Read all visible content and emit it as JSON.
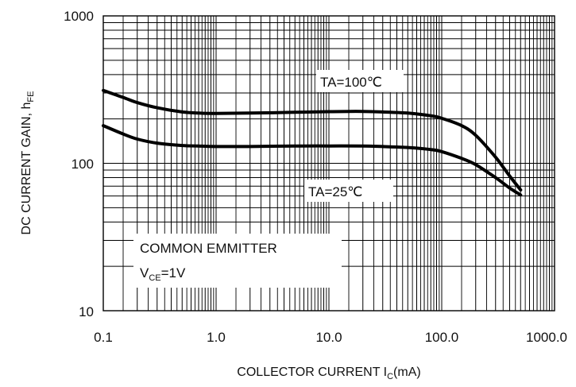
{
  "chart_data": {
    "type": "line",
    "xlabel": "COLLECTOR CURRENT I",
    "xlabel_sub": "C",
    "xlabel_unit": "(mA)",
    "ylabel": "DC CURRENT GAIN, h",
    "ylabel_sub": "FE",
    "x_scale": "log",
    "y_scale": "log",
    "xlim": [
      0.1,
      1000
    ],
    "ylim": [
      10,
      1000
    ],
    "x_ticks": [
      "0.1",
      "1.0",
      "10.0",
      "100.0",
      "1000.0"
    ],
    "y_ticks": [
      "1000",
      "100",
      "10"
    ],
    "grid": true,
    "series": [
      {
        "name": "TA=100℃",
        "x": [
          0.1,
          0.15,
          0.2,
          0.3,
          0.5,
          0.7,
          1,
          2,
          5,
          10,
          15,
          20,
          30,
          50,
          80,
          100,
          150,
          200,
          300,
          400,
          500
        ],
        "y": [
          312,
          280,
          258,
          238,
          223,
          219,
          218,
          219,
          222,
          224,
          225,
          225,
          223,
          219,
          210,
          202,
          180,
          155,
          110,
          82,
          66
        ]
      },
      {
        "name": "TA=25℃",
        "x": [
          0.1,
          0.15,
          0.2,
          0.3,
          0.5,
          0.7,
          1,
          2,
          5,
          10,
          20,
          30,
          50,
          80,
          100,
          150,
          200,
          300,
          400,
          500
        ],
        "y": [
          180,
          158,
          146,
          137,
          132,
          131,
          130,
          130,
          131,
          131,
          131,
          130,
          128,
          124,
          120,
          108,
          98,
          80,
          68,
          61
        ]
      }
    ],
    "annotations": {
      "line1": "COMMON EMMITTER",
      "line2_main": "V",
      "line2_sub": "CE",
      "line2_rest": "=1V"
    }
  }
}
